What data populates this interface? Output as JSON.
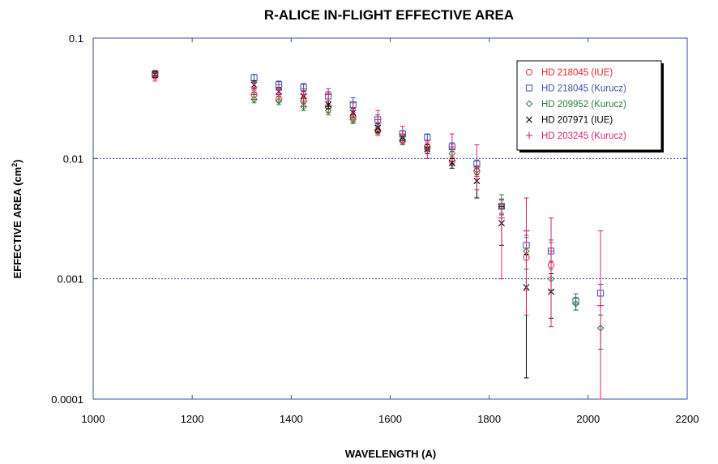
{
  "chart_data": {
    "type": "scatter",
    "title": "R-ALICE IN-FLIGHT EFFECTIVE AREA",
    "xlabel": "WAVELENGTH (A)",
    "ylabel_main": "EFFECTIVE AREA (cm",
    "ylabel_sup": "2",
    "ylabel_close": ")",
    "xlim": [
      1000,
      2200
    ],
    "ylim": [
      0.0001,
      0.1
    ],
    "yscale": "log",
    "x_ticks": [
      1000,
      1200,
      1400,
      1600,
      1800,
      2000,
      2200
    ],
    "x_tick_labels": [
      "1000",
      "1200",
      "1400",
      "1600",
      "1800",
      "2000",
      "2200"
    ],
    "y_ticks": [
      0.0001,
      0.001,
      0.01,
      0.1
    ],
    "y_tick_labels": [
      "0.0001",
      "0.001",
      "0.01",
      "0.1"
    ],
    "grid": "horizontal dotted",
    "legend_placement": "top-right",
    "series": [
      {
        "name": "HD 218045 (IUE)",
        "color": "#e8262b",
        "marker": "circle",
        "points": [
          {
            "x": 1125,
            "y": 0.05,
            "lo": 0.046,
            "hi": 0.054
          },
          {
            "x": 1325,
            "y": 0.034,
            "lo": 0.031,
            "hi": 0.037
          },
          {
            "x": 1375,
            "y": 0.031,
            "lo": 0.028,
            "hi": 0.034
          },
          {
            "x": 1425,
            "y": 0.03,
            "lo": 0.027,
            "hi": 0.033
          },
          {
            "x": 1475,
            "y": 0.027,
            "lo": 0.024,
            "hi": 0.03
          },
          {
            "x": 1525,
            "y": 0.022,
            "lo": 0.02,
            "hi": 0.024
          },
          {
            "x": 1575,
            "y": 0.017,
            "lo": 0.0155,
            "hi": 0.0185
          },
          {
            "x": 1625,
            "y": 0.014,
            "lo": 0.013,
            "hi": 0.015
          },
          {
            "x": 1675,
            "y": 0.0125,
            "lo": 0.0115,
            "hi": 0.0135
          },
          {
            "x": 1725,
            "y": 0.0095,
            "lo": 0.0087,
            "hi": 0.0103
          },
          {
            "x": 1775,
            "y": 0.0078,
            "lo": 0.0071,
            "hi": 0.0085
          },
          {
            "x": 1825,
            "y": 0.004,
            "lo": 0.0034,
            "hi": 0.0046
          },
          {
            "x": 1875,
            "y": 0.0015,
            "lo": 0.0008,
            "hi": 0.0025
          },
          {
            "x": 1925,
            "y": 0.0013,
            "lo": 0.0008,
            "hi": 0.002
          }
        ]
      },
      {
        "name": "HD 218045 (Kurucz)",
        "color": "#3a55a5",
        "marker": "square",
        "points": [
          {
            "x": 1125,
            "y": 0.05,
            "lo": 0.047,
            "hi": 0.053
          },
          {
            "x": 1325,
            "y": 0.047,
            "lo": 0.044,
            "hi": 0.05
          },
          {
            "x": 1375,
            "y": 0.041,
            "lo": 0.038,
            "hi": 0.044
          },
          {
            "x": 1425,
            "y": 0.039,
            "lo": 0.036,
            "hi": 0.042
          },
          {
            "x": 1475,
            "y": 0.033,
            "lo": 0.03,
            "hi": 0.036
          },
          {
            "x": 1525,
            "y": 0.028,
            "lo": 0.025,
            "hi": 0.032
          },
          {
            "x": 1575,
            "y": 0.021,
            "lo": 0.019,
            "hi": 0.023
          },
          {
            "x": 1625,
            "y": 0.016,
            "lo": 0.015,
            "hi": 0.017
          },
          {
            "x": 1675,
            "y": 0.015,
            "lo": 0.014,
            "hi": 0.016
          },
          {
            "x": 1725,
            "y": 0.0125,
            "lo": 0.0115,
            "hi": 0.0135
          },
          {
            "x": 1775,
            "y": 0.009,
            "lo": 0.0083,
            "hi": 0.0097
          },
          {
            "x": 1825,
            "y": 0.004,
            "lo": 0.0035,
            "hi": 0.0046
          },
          {
            "x": 1875,
            "y": 0.0019,
            "lo": 0.0016,
            "hi": 0.0023
          },
          {
            "x": 1925,
            "y": 0.0017,
            "lo": 0.0014,
            "hi": 0.0021
          },
          {
            "x": 1975,
            "y": 0.00065,
            "lo": 0.00055,
            "hi": 0.00075
          },
          {
            "x": 2025,
            "y": 0.00076,
            "lo": 0.0006,
            "hi": 0.0009
          }
        ]
      },
      {
        "name": "HD 209952 (Kurucz)",
        "color": "#2e7d3b",
        "marker": "diamond",
        "points": [
          {
            "x": 1125,
            "y": 0.05,
            "lo": 0.047,
            "hi": 0.053
          },
          {
            "x": 1325,
            "y": 0.031,
            "lo": 0.029,
            "hi": 0.034
          },
          {
            "x": 1375,
            "y": 0.03,
            "lo": 0.028,
            "hi": 0.033
          },
          {
            "x": 1425,
            "y": 0.027,
            "lo": 0.025,
            "hi": 0.029
          },
          {
            "x": 1475,
            "y": 0.025,
            "lo": 0.023,
            "hi": 0.027
          },
          {
            "x": 1525,
            "y": 0.021,
            "lo": 0.0195,
            "hi": 0.0225
          },
          {
            "x": 1575,
            "y": 0.017,
            "lo": 0.016,
            "hi": 0.018
          },
          {
            "x": 1625,
            "y": 0.014,
            "lo": 0.013,
            "hi": 0.015
          },
          {
            "x": 1675,
            "y": 0.012,
            "lo": 0.011,
            "hi": 0.013
          },
          {
            "x": 1725,
            "y": 0.011,
            "lo": 0.01,
            "hi": 0.012
          },
          {
            "x": 1775,
            "y": 0.008,
            "lo": 0.0073,
            "hi": 0.0087
          },
          {
            "x": 1825,
            "y": 0.004,
            "lo": 0.0034,
            "hi": 0.005
          },
          {
            "x": 1875,
            "y": 0.0017,
            "lo": 0.0012,
            "hi": 0.0022
          },
          {
            "x": 1925,
            "y": 0.001,
            "lo": 0.0008,
            "hi": 0.0012
          },
          {
            "x": 1975,
            "y": 0.00062,
            "lo": 0.00055,
            "hi": 0.0007
          },
          {
            "x": 2025,
            "y": 0.00039,
            "lo": 0.00026,
            "hi": 0.0005
          }
        ]
      },
      {
        "name": "HD 207971 (IUE)",
        "color": "#000000",
        "marker": "x",
        "points": [
          {
            "x": 1125,
            "y": 0.05,
            "lo": 0.047,
            "hi": 0.053
          },
          {
            "x": 1325,
            "y": 0.041,
            "lo": 0.038,
            "hi": 0.044
          },
          {
            "x": 1375,
            "y": 0.036,
            "lo": 0.033,
            "hi": 0.039
          },
          {
            "x": 1425,
            "y": 0.033,
            "lo": 0.03,
            "hi": 0.036
          },
          {
            "x": 1475,
            "y": 0.028,
            "lo": 0.026,
            "hi": 0.03
          },
          {
            "x": 1525,
            "y": 0.024,
            "lo": 0.022,
            "hi": 0.026
          },
          {
            "x": 1575,
            "y": 0.018,
            "lo": 0.0165,
            "hi": 0.0195
          },
          {
            "x": 1625,
            "y": 0.015,
            "lo": 0.014,
            "hi": 0.016
          },
          {
            "x": 1675,
            "y": 0.012,
            "lo": 0.011,
            "hi": 0.013
          },
          {
            "x": 1725,
            "y": 0.0092,
            "lo": 0.0083,
            "hi": 0.01
          },
          {
            "x": 1775,
            "y": 0.0065,
            "lo": 0.0047,
            "hi": 0.0085
          },
          {
            "x": 1825,
            "y": 0.0029,
            "lo": 0.0019,
            "hi": 0.004
          },
          {
            "x": 1875,
            "y": 0.00085,
            "lo": 0.00015,
            "hi": 0.0016
          },
          {
            "x": 1925,
            "y": 0.00078,
            "lo": 0.00047,
            "hi": 0.0011
          }
        ]
      },
      {
        "name": "HD 203245 (Kurucz)",
        "color": "#d6257a",
        "marker": "plus",
        "points": [
          {
            "x": 1125,
            "y": 0.048,
            "lo": 0.044,
            "hi": 0.052
          },
          {
            "x": 1325,
            "y": 0.039,
            "lo": 0.035,
            "hi": 0.043
          },
          {
            "x": 1375,
            "y": 0.037,
            "lo": 0.033,
            "hi": 0.041
          },
          {
            "x": 1425,
            "y": 0.034,
            "lo": 0.03,
            "hi": 0.038
          },
          {
            "x": 1475,
            "y": 0.034,
            "lo": 0.03,
            "hi": 0.038
          },
          {
            "x": 1525,
            "y": 0.025,
            "lo": 0.022,
            "hi": 0.029
          },
          {
            "x": 1575,
            "y": 0.021,
            "lo": 0.017,
            "hi": 0.025
          },
          {
            "x": 1625,
            "y": 0.016,
            "lo": 0.0135,
            "hi": 0.0185
          },
          {
            "x": 1675,
            "y": 0.012,
            "lo": 0.01,
            "hi": 0.014
          },
          {
            "x": 1725,
            "y": 0.0125,
            "lo": 0.0095,
            "hi": 0.016
          },
          {
            "x": 1775,
            "y": 0.0085,
            "lo": 0.0055,
            "hi": 0.013
          },
          {
            "x": 1825,
            "y": 0.0032,
            "lo": 0.001,
            "hi": 0.0045
          },
          {
            "x": 1875,
            "y": 0.0025,
            "lo": 0.0005,
            "hi": 0.0047
          },
          {
            "x": 1925,
            "y": 0.0017,
            "lo": 0.0004,
            "hi": 0.0032
          },
          {
            "x": 2025,
            "y": 0.0006,
            "lo": 0.0001,
            "hi": 0.0025
          }
        ]
      }
    ]
  }
}
